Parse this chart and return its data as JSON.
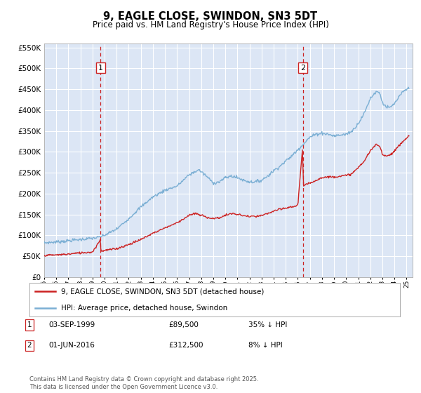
{
  "title": "9, EAGLE CLOSE, SWINDON, SN3 5DT",
  "subtitle": "Price paid vs. HM Land Registry's House Price Index (HPI)",
  "ylim_top": 560000,
  "yticks": [
    0,
    50000,
    100000,
    150000,
    200000,
    250000,
    300000,
    350000,
    400000,
    450000,
    500000,
    550000
  ],
  "xlim_start": 1995.0,
  "xlim_end": 2025.5,
  "plot_bg_color": "#dce6f5",
  "grid_color": "#ffffff",
  "sale1_date": 1999.67,
  "sale1_price": 89500,
  "sale2_date": 2016.42,
  "sale2_price": 312500,
  "legend_line1": "9, EAGLE CLOSE, SWINDON, SN3 5DT (detached house)",
  "legend_line2": "HPI: Average price, detached house, Swindon",
  "table_row1": [
    "1",
    "03-SEP-1999",
    "£89,500",
    "35% ↓ HPI"
  ],
  "table_row2": [
    "2",
    "01-JUN-2016",
    "£312,500",
    "8% ↓ HPI"
  ],
  "footer": "Contains HM Land Registry data © Crown copyright and database right 2025.\nThis data is licensed under the Open Government Licence v3.0.",
  "hpi_color": "#7bafd4",
  "price_color": "#cc2222",
  "vline_color": "#cc2222",
  "hpi_anchors": [
    [
      1995.0,
      82000
    ],
    [
      1996.0,
      84000
    ],
    [
      1997.0,
      87000
    ],
    [
      1998.0,
      90000
    ],
    [
      1999.0,
      93000
    ],
    [
      1999.5,
      95000
    ],
    [
      2000.0,
      100000
    ],
    [
      2001.0,
      115000
    ],
    [
      2002.0,
      140000
    ],
    [
      2003.0,
      168000
    ],
    [
      2004.0,
      192000
    ],
    [
      2005.0,
      208000
    ],
    [
      2006.0,
      218000
    ],
    [
      2007.0,
      245000
    ],
    [
      2007.8,
      257000
    ],
    [
      2008.5,
      240000
    ],
    [
      2009.0,
      225000
    ],
    [
      2009.5,
      228000
    ],
    [
      2010.0,
      238000
    ],
    [
      2010.5,
      242000
    ],
    [
      2011.0,
      238000
    ],
    [
      2011.5,
      232000
    ],
    [
      2012.0,
      228000
    ],
    [
      2012.5,
      228000
    ],
    [
      2013.0,
      232000
    ],
    [
      2013.5,
      242000
    ],
    [
      2014.0,
      255000
    ],
    [
      2014.5,
      265000
    ],
    [
      2015.0,
      278000
    ],
    [
      2015.5,
      290000
    ],
    [
      2016.0,
      305000
    ],
    [
      2016.5,
      320000
    ],
    [
      2017.0,
      335000
    ],
    [
      2017.5,
      342000
    ],
    [
      2018.0,
      345000
    ],
    [
      2018.5,
      342000
    ],
    [
      2019.0,
      338000
    ],
    [
      2019.5,
      340000
    ],
    [
      2020.0,
      342000
    ],
    [
      2020.5,
      350000
    ],
    [
      2021.0,
      368000
    ],
    [
      2021.5,
      392000
    ],
    [
      2022.0,
      428000
    ],
    [
      2022.5,
      445000
    ],
    [
      2022.8,
      440000
    ],
    [
      2023.0,
      418000
    ],
    [
      2023.3,
      408000
    ],
    [
      2023.6,
      405000
    ],
    [
      2024.0,
      415000
    ],
    [
      2024.3,
      428000
    ],
    [
      2024.6,
      440000
    ],
    [
      2024.9,
      448000
    ],
    [
      2025.2,
      452000
    ]
  ],
  "price_anchors": [
    [
      1995.0,
      52000
    ],
    [
      1996.0,
      53000
    ],
    [
      1997.0,
      55000
    ],
    [
      1998.0,
      58000
    ],
    [
      1999.0,
      60000
    ],
    [
      1999.65,
      89500
    ],
    [
      1999.7,
      62000
    ],
    [
      2000.0,
      64000
    ],
    [
      2001.0,
      68000
    ],
    [
      2002.0,
      78000
    ],
    [
      2003.0,
      90000
    ],
    [
      2004.0,
      105000
    ],
    [
      2005.0,
      118000
    ],
    [
      2006.0,
      130000
    ],
    [
      2007.0,
      148000
    ],
    [
      2007.5,
      152000
    ],
    [
      2008.0,
      148000
    ],
    [
      2008.5,
      143000
    ],
    [
      2009.0,
      140000
    ],
    [
      2009.5,
      142000
    ],
    [
      2010.0,
      148000
    ],
    [
      2010.5,
      152000
    ],
    [
      2011.0,
      150000
    ],
    [
      2011.5,
      147000
    ],
    [
      2012.0,
      145000
    ],
    [
      2012.5,
      145000
    ],
    [
      2013.0,
      147000
    ],
    [
      2013.5,
      152000
    ],
    [
      2014.0,
      158000
    ],
    [
      2014.5,
      162000
    ],
    [
      2015.0,
      165000
    ],
    [
      2015.5,
      168000
    ],
    [
      2016.0,
      172000
    ],
    [
      2016.4,
      312500
    ],
    [
      2016.45,
      218000
    ],
    [
      2017.0,
      225000
    ],
    [
      2017.5,
      232000
    ],
    [
      2018.0,
      238000
    ],
    [
      2018.5,
      240000
    ],
    [
      2019.0,
      240000
    ],
    [
      2019.5,
      242000
    ],
    [
      2020.0,
      243000
    ],
    [
      2020.5,
      248000
    ],
    [
      2021.0,
      262000
    ],
    [
      2021.5,
      278000
    ],
    [
      2022.0,
      302000
    ],
    [
      2022.5,
      318000
    ],
    [
      2022.8,
      312000
    ],
    [
      2023.0,
      295000
    ],
    [
      2023.3,
      290000
    ],
    [
      2023.6,
      292000
    ],
    [
      2024.0,
      302000
    ],
    [
      2024.3,
      312000
    ],
    [
      2024.6,
      322000
    ],
    [
      2024.9,
      330000
    ],
    [
      2025.2,
      338000
    ]
  ]
}
